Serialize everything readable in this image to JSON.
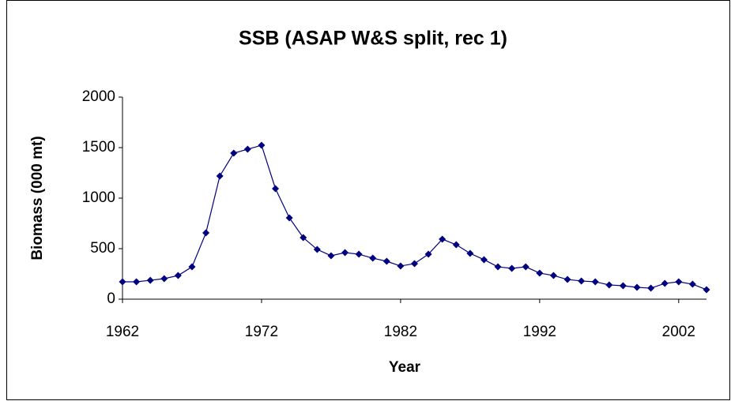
{
  "chart_data": {
    "type": "line",
    "title": "SSB (ASAP W&S split, rec 1)",
    "x_label": "Year",
    "y_label": "Biomass (000 mt)",
    "x": [
      1962,
      1963,
      1964,
      1965,
      1966,
      1967,
      1968,
      1969,
      1970,
      1971,
      1972,
      1973,
      1974,
      1975,
      1976,
      1977,
      1978,
      1979,
      1980,
      1981,
      1982,
      1983,
      1984,
      1985,
      1986,
      1987,
      1988,
      1989,
      1990,
      1991,
      1992,
      1993,
      1994,
      1995,
      1996,
      1997,
      1998,
      1999,
      2000,
      2001,
      2002,
      2003,
      2004
    ],
    "series": [
      {
        "name": "SSB",
        "color": "#000080",
        "values": [
          172,
          172,
          187,
          203,
          234,
          320,
          656,
          1219,
          1445,
          1484,
          1523,
          1094,
          805,
          609,
          492,
          430,
          461,
          445,
          406,
          375,
          328,
          352,
          445,
          594,
          539,
          453,
          391,
          320,
          305,
          320,
          258,
          234,
          195,
          180,
          172,
          141,
          133,
          117,
          109,
          156,
          172,
          148,
          94
        ]
      }
    ],
    "xlim": [
      1962,
      2004
    ],
    "xticks": [
      1962,
      1972,
      1982,
      1992,
      2002
    ],
    "ylim": [
      0,
      2000
    ],
    "yticks": [
      0,
      500,
      1000,
      1500,
      2000
    ],
    "grid": false,
    "legend": false
  }
}
